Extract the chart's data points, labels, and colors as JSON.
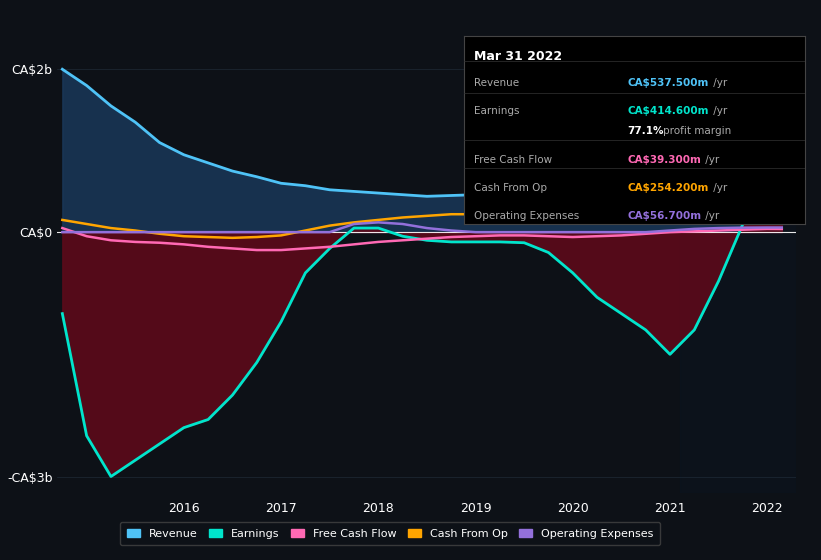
{
  "bg_color": "#0d1117",
  "plot_bg_color": "#0d1117",
  "info_box": {
    "title": "Mar 31 2022",
    "rows": [
      {
        "label": "Revenue",
        "value": "CA$537.500m /yr",
        "value_color": "#4fc3f7"
      },
      {
        "label": "Earnings",
        "value": "CA$414.600m /yr",
        "value_color": "#00e5cc"
      },
      {
        "label": "",
        "value": "77.1% profit margin",
        "value_color": "#ffffff"
      },
      {
        "label": "Free Cash Flow",
        "value": "CA$39.300m /yr",
        "value_color": "#ff69b4"
      },
      {
        "label": "Cash From Op",
        "value": "CA$254.200m /yr",
        "value_color": "#ffa500"
      },
      {
        "label": "Operating Expenses",
        "value": "CA$56.700m /yr",
        "value_color": "#9370db"
      }
    ]
  },
  "years": [
    2014.75,
    2015.0,
    2015.25,
    2015.5,
    2015.75,
    2016.0,
    2016.25,
    2016.5,
    2016.75,
    2017.0,
    2017.25,
    2017.5,
    2017.75,
    2018.0,
    2018.25,
    2018.5,
    2018.75,
    2019.0,
    2019.25,
    2019.5,
    2019.75,
    2020.0,
    2020.25,
    2020.5,
    2020.75,
    2021.0,
    2021.25,
    2021.5,
    2021.75,
    2022.0,
    2022.15
  ],
  "revenue": [
    2.0,
    1.8,
    1.55,
    1.35,
    1.1,
    0.95,
    0.85,
    0.75,
    0.68,
    0.6,
    0.57,
    0.52,
    0.5,
    0.48,
    0.46,
    0.44,
    0.45,
    0.46,
    0.45,
    0.44,
    0.45,
    0.46,
    0.47,
    0.48,
    0.5,
    0.52,
    0.53,
    0.54,
    0.535,
    0.537,
    0.538
  ],
  "earnings": [
    -1.0,
    -2.5,
    -3.0,
    -2.8,
    -2.6,
    -2.4,
    -2.3,
    -2.0,
    -1.6,
    -1.1,
    -0.5,
    -0.2,
    0.05,
    0.05,
    -0.05,
    -0.1,
    -0.12,
    -0.12,
    -0.12,
    -0.13,
    -0.25,
    -0.5,
    -0.8,
    -1.0,
    -1.2,
    -1.5,
    -1.2,
    -0.6,
    0.1,
    0.38,
    0.41
  ],
  "free_cash_flow": [
    0.05,
    -0.05,
    -0.1,
    -0.12,
    -0.13,
    -0.15,
    -0.18,
    -0.2,
    -0.22,
    -0.22,
    -0.2,
    -0.18,
    -0.15,
    -0.12,
    -0.1,
    -0.08,
    -0.06,
    -0.05,
    -0.04,
    -0.04,
    -0.05,
    -0.06,
    -0.05,
    -0.04,
    -0.02,
    0.0,
    0.01,
    0.02,
    0.03,
    0.04,
    0.039
  ],
  "cash_from_op": [
    0.15,
    0.1,
    0.05,
    0.02,
    -0.02,
    -0.05,
    -0.06,
    -0.07,
    -0.06,
    -0.04,
    0.02,
    0.08,
    0.12,
    0.15,
    0.18,
    0.2,
    0.22,
    0.22,
    0.22,
    0.22,
    0.23,
    0.24,
    0.24,
    0.24,
    0.24,
    0.24,
    0.245,
    0.248,
    0.252,
    0.254,
    0.254
  ],
  "op_expenses": [
    0.0,
    0.0,
    0.0,
    0.0,
    0.0,
    0.0,
    0.0,
    0.0,
    0.0,
    0.0,
    0.0,
    0.0,
    0.1,
    0.12,
    0.1,
    0.05,
    0.02,
    0.0,
    0.0,
    0.0,
    0.0,
    0.0,
    0.0,
    0.0,
    0.0,
    0.02,
    0.04,
    0.05,
    0.055,
    0.057,
    0.057
  ],
  "revenue_color": "#4fc3f7",
  "revenue_fill_color": "#1a3a5c",
  "earnings_color": "#00e5cc",
  "earnings_fill_color": "#5c0a1a",
  "fcf_color": "#ff69b4",
  "cfo_color": "#ffa500",
  "opex_color": "#9370db",
  "ylim": [
    -3.2,
    2.3
  ],
  "xlim": [
    2014.7,
    2022.3
  ],
  "yticks": [
    -3,
    0,
    2
  ],
  "ytick_labels": [
    "-CA$3b",
    "CA$0",
    "CA$2b"
  ],
  "xtick_years": [
    2016,
    2017,
    2018,
    2019,
    2020,
    2021,
    2022
  ],
  "legend_items": [
    {
      "label": "Revenue",
      "color": "#4fc3f7"
    },
    {
      "label": "Earnings",
      "color": "#00e5cc"
    },
    {
      "label": "Free Cash Flow",
      "color": "#ff69b4"
    },
    {
      "label": "Cash From Op",
      "color": "#ffa500"
    },
    {
      "label": "Operating Expenses",
      "color": "#9370db"
    }
  ]
}
